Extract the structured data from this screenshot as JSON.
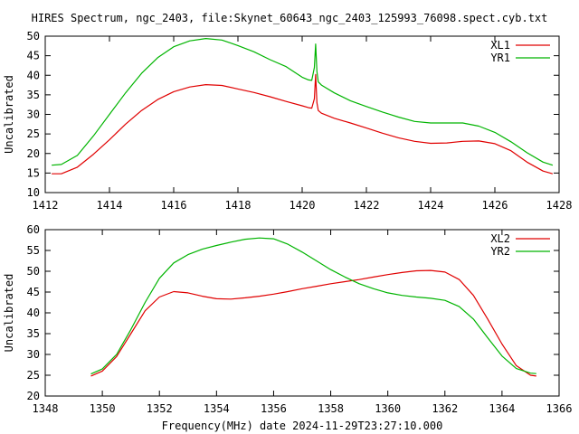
{
  "title": "HIRES Spectrum, ngc_2403, file:Skynet_60643_ngc_2403_125993_76098.spect.cyb.txt",
  "footer": "Frequency(MHz) date 2024-11-29T23:27:10.000",
  "colors": {
    "red": "#e00000",
    "green": "#00b400"
  },
  "chart_data": [
    {
      "type": "line",
      "ylabel": "Uncalibrated",
      "xlim": [
        1412,
        1428
      ],
      "ylim": [
        10,
        50
      ],
      "xticks": [
        1412,
        1414,
        1416,
        1418,
        1420,
        1422,
        1424,
        1426,
        1428
      ],
      "yticks": [
        10,
        15,
        20,
        25,
        30,
        35,
        40,
        45,
        50
      ],
      "legend": "top-right",
      "series": [
        {
          "name": "XL1",
          "color": "#e00000",
          "x": [
            1412.2,
            1412.5,
            1413,
            1413.5,
            1414,
            1414.5,
            1415,
            1415.5,
            1416,
            1416.5,
            1417,
            1417.5,
            1418,
            1418.5,
            1419,
            1419.5,
            1420,
            1420.2,
            1420.3,
            1420.38,
            1420.42,
            1420.46,
            1420.5,
            1420.6,
            1421,
            1421.5,
            1422,
            1422.5,
            1423,
            1423.5,
            1424,
            1424.5,
            1425,
            1425.5,
            1426,
            1426.5,
            1427,
            1427.5,
            1427.8
          ],
          "y": [
            14.8,
            14.8,
            16.5,
            19.8,
            23.5,
            27.5,
            31,
            33.8,
            35.8,
            37,
            37.6,
            37.4,
            36.5,
            35.6,
            34.5,
            33.3,
            32.2,
            31.7,
            31.6,
            34,
            40.2,
            33,
            31,
            30.3,
            29,
            27.8,
            26.5,
            25.2,
            24,
            23.1,
            22.6,
            22.7,
            23.1,
            23.2,
            22.5,
            20.7,
            17.8,
            15.5,
            14.8
          ]
        },
        {
          "name": "YR1",
          "color": "#00b400",
          "x": [
            1412.2,
            1412.5,
            1413,
            1413.5,
            1414,
            1414.5,
            1415,
            1415.5,
            1416,
            1416.5,
            1417,
            1417.5,
            1418,
            1418.5,
            1419,
            1419.5,
            1420,
            1420.2,
            1420.3,
            1420.38,
            1420.42,
            1420.46,
            1420.5,
            1420.6,
            1421,
            1421.5,
            1422,
            1422.5,
            1423,
            1423.5,
            1424,
            1424.5,
            1425,
            1425.5,
            1426,
            1426.5,
            1427,
            1427.5,
            1427.8
          ],
          "y": [
            17,
            17.2,
            19.5,
            24.5,
            30,
            35.5,
            40.5,
            44.5,
            47.3,
            48.8,
            49.4,
            49,
            47.6,
            46,
            44,
            42.2,
            39.5,
            38.8,
            38.7,
            42,
            48,
            41,
            38.3,
            37.5,
            35.5,
            33.5,
            32,
            30.6,
            29.3,
            28.2,
            27.8,
            27.8,
            27.8,
            27,
            25.4,
            23,
            20.2,
            17.8,
            17
          ]
        }
      ]
    },
    {
      "type": "line",
      "ylabel": "Uncalibrated",
      "xlim": [
        1348,
        1366
      ],
      "ylim": [
        20,
        60
      ],
      "xticks": [
        1348,
        1350,
        1352,
        1354,
        1356,
        1358,
        1360,
        1362,
        1364,
        1366
      ],
      "yticks": [
        20,
        25,
        30,
        35,
        40,
        45,
        50,
        55,
        60
      ],
      "legend": "top-right",
      "series": [
        {
          "name": "XL2",
          "color": "#e00000",
          "x": [
            1349.6,
            1350,
            1350.5,
            1351,
            1351.5,
            1352,
            1352.5,
            1353,
            1353.5,
            1354,
            1354.5,
            1355,
            1355.5,
            1356,
            1356.5,
            1357,
            1357.5,
            1358,
            1358.5,
            1359,
            1359.5,
            1360,
            1360.5,
            1361,
            1361.5,
            1362,
            1362.5,
            1363,
            1363.5,
            1364,
            1364.5,
            1365,
            1365.2
          ],
          "y": [
            24.8,
            26,
            29.5,
            35,
            40.5,
            43.8,
            45.1,
            44.8,
            44,
            43.4,
            43.3,
            43.6,
            44,
            44.5,
            45.1,
            45.8,
            46.4,
            47,
            47.5,
            48,
            48.6,
            49.2,
            49.7,
            50.1,
            50.2,
            49.8,
            48,
            44.2,
            38.5,
            32.5,
            27.3,
            25,
            24.8
          ]
        },
        {
          "name": "YR2",
          "color": "#00b400",
          "x": [
            1349.6,
            1350,
            1350.5,
            1351,
            1351.5,
            1352,
            1352.5,
            1353,
            1353.5,
            1354,
            1354.5,
            1355,
            1355.5,
            1356,
            1356.5,
            1357,
            1357.5,
            1358,
            1358.5,
            1359,
            1359.5,
            1360,
            1360.5,
            1361,
            1361.5,
            1362,
            1362.5,
            1363,
            1363.5,
            1364,
            1364.5,
            1365,
            1365.2
          ],
          "y": [
            25.3,
            26.5,
            30,
            36,
            42.5,
            48.3,
            52,
            54,
            55.3,
            56.2,
            57,
            57.7,
            58,
            57.8,
            56.5,
            54.6,
            52.5,
            50.4,
            48.6,
            47,
            45.8,
            44.8,
            44.2,
            43.8,
            43.5,
            43,
            41.5,
            38.5,
            34,
            29.6,
            26.6,
            25.5,
            25.4
          ]
        }
      ]
    }
  ]
}
